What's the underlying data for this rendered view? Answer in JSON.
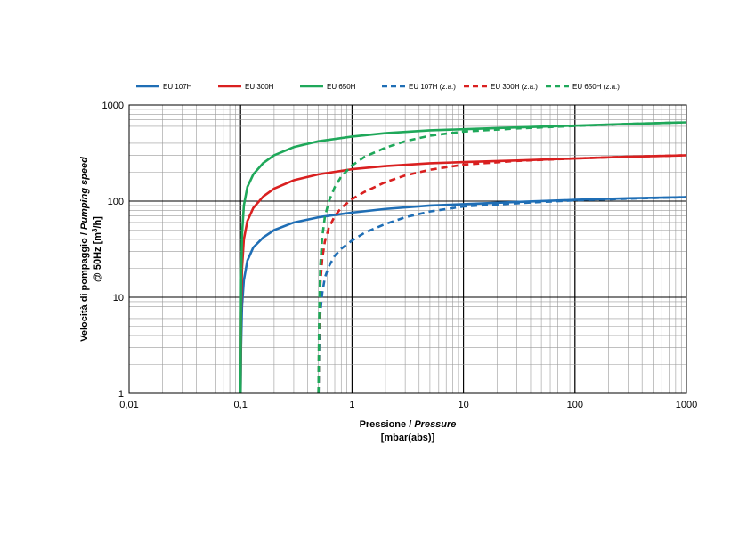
{
  "chart_data": {
    "type": "line",
    "title": "",
    "x_scale": "log",
    "y_scale": "log",
    "xlim": [
      0.01,
      1000
    ],
    "ylim": [
      1,
      1000
    ],
    "grid": true,
    "legend_position": "top",
    "xlabel": {
      "line1_regular": "Pressione / ",
      "line1_italic": "Pressure",
      "line2": "[mbar(abs)]"
    },
    "ylabel": {
      "line1_regular": "Velocità di pompaggio / ",
      "line1_italic": "Pumping speed",
      "line2_prefix": "@ 50Hz [m",
      "line2_sup": "3",
      "line2_suffix": "/h]"
    },
    "x_ticks": [
      {
        "value": 0.01,
        "label": "0,01"
      },
      {
        "value": 0.1,
        "label": "0,1"
      },
      {
        "value": 1,
        "label": "1"
      },
      {
        "value": 10,
        "label": "10"
      },
      {
        "value": 100,
        "label": "100"
      },
      {
        "value": 1000,
        "label": "1000"
      }
    ],
    "y_ticks": [
      {
        "value": 1,
        "label": "1"
      },
      {
        "value": 10,
        "label": "10"
      },
      {
        "value": 100,
        "label": "100"
      },
      {
        "value": 1000,
        "label": "1000"
      }
    ],
    "series": [
      {
        "name": "EU 107H",
        "color": "#1f6eb5",
        "dashed": false,
        "x": [
          0.1,
          0.101,
          0.103,
          0.107,
          0.115,
          0.13,
          0.16,
          0.2,
          0.3,
          0.5,
          1,
          2,
          5,
          10,
          30,
          100,
          300,
          1000
        ],
        "y": [
          1,
          3,
          8,
          15,
          24,
          33,
          42,
          50,
          60,
          68,
          76,
          83,
          90,
          93,
          98,
          103,
          107,
          110
        ]
      },
      {
        "name": "EU 300H",
        "color": "#d92020",
        "dashed": false,
        "x": [
          0.1,
          0.101,
          0.103,
          0.107,
          0.115,
          0.13,
          0.16,
          0.2,
          0.3,
          0.5,
          1,
          2,
          5,
          10,
          30,
          100,
          300,
          1000
        ],
        "y": [
          1,
          7,
          20,
          40,
          62,
          85,
          112,
          135,
          165,
          190,
          215,
          232,
          248,
          255,
          265,
          278,
          290,
          300
        ]
      },
      {
        "name": "EU 650H",
        "color": "#1fa85a",
        "dashed": false,
        "x": [
          0.1,
          0.101,
          0.103,
          0.107,
          0.115,
          0.13,
          0.16,
          0.2,
          0.3,
          0.5,
          1,
          2,
          5,
          10,
          30,
          100,
          300,
          1000
        ],
        "y": [
          1,
          15,
          45,
          90,
          140,
          190,
          250,
          300,
          365,
          420,
          470,
          510,
          545,
          560,
          585,
          610,
          635,
          660
        ]
      },
      {
        "name": "EU 107H (z.a.)",
        "color": "#1f6eb5",
        "dashed": true,
        "x": [
          0.5,
          0.505,
          0.51,
          0.52,
          0.54,
          0.57,
          0.62,
          0.7,
          0.8,
          1,
          1.3,
          2,
          3,
          5,
          10,
          30,
          100,
          300,
          1000
        ],
        "y": [
          1,
          2,
          4,
          7,
          11,
          16,
          21,
          27,
          32,
          39,
          47,
          58,
          68,
          78,
          88,
          95,
          102,
          106,
          110
        ]
      },
      {
        "name": "EU 300H (z.a.)",
        "color": "#d92020",
        "dashed": true,
        "x": [
          0.5,
          0.505,
          0.51,
          0.52,
          0.54,
          0.57,
          0.62,
          0.7,
          0.8,
          1,
          1.3,
          2,
          3,
          5,
          10,
          30,
          100,
          300,
          1000
        ],
        "y": [
          1,
          3,
          7,
          14,
          25,
          38,
          53,
          70,
          85,
          105,
          125,
          158,
          185,
          212,
          240,
          262,
          278,
          290,
          300
        ]
      },
      {
        "name": "EU 650H (z.a.)",
        "color": "#1fa85a",
        "dashed": true,
        "x": [
          0.5,
          0.505,
          0.51,
          0.52,
          0.54,
          0.57,
          0.62,
          0.7,
          0.8,
          1,
          1.3,
          2,
          3,
          5,
          10,
          30,
          100,
          300,
          1000
        ],
        "y": [
          1,
          4,
          10,
          22,
          42,
          68,
          100,
          140,
          180,
          235,
          290,
          360,
          420,
          480,
          530,
          570,
          605,
          635,
          660
        ]
      }
    ]
  }
}
